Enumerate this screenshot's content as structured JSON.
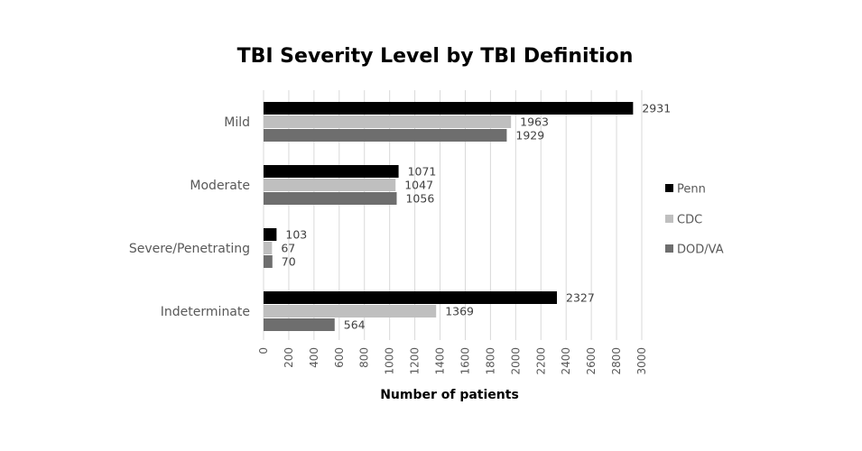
{
  "chart_data": {
    "type": "bar",
    "orientation": "horizontal",
    "title": "TBI Severity Level by TBI Definition",
    "xlabel": "Number of patients",
    "ylabel": "",
    "categories": [
      "Mild",
      "Moderate",
      "Severe/Penetrating",
      "Indeterminate"
    ],
    "series": [
      {
        "name": "Penn",
        "color": "#000000",
        "values": [
          2931,
          1071,
          103,
          2327
        ]
      },
      {
        "name": "CDC",
        "color": "#bfbfbf",
        "values": [
          1963,
          1047,
          67,
          1369
        ]
      },
      {
        "name": "DOD/VA",
        "color": "#6e6e6e",
        "values": [
          1929,
          1056,
          70,
          564
        ]
      }
    ],
    "xlim": [
      0,
      3000
    ],
    "ticks": [
      0,
      200,
      400,
      600,
      800,
      1000,
      1200,
      1400,
      1600,
      1800,
      2000,
      2200,
      2400,
      2600,
      2800,
      3000
    ],
    "grid": true,
    "legend": "right"
  }
}
